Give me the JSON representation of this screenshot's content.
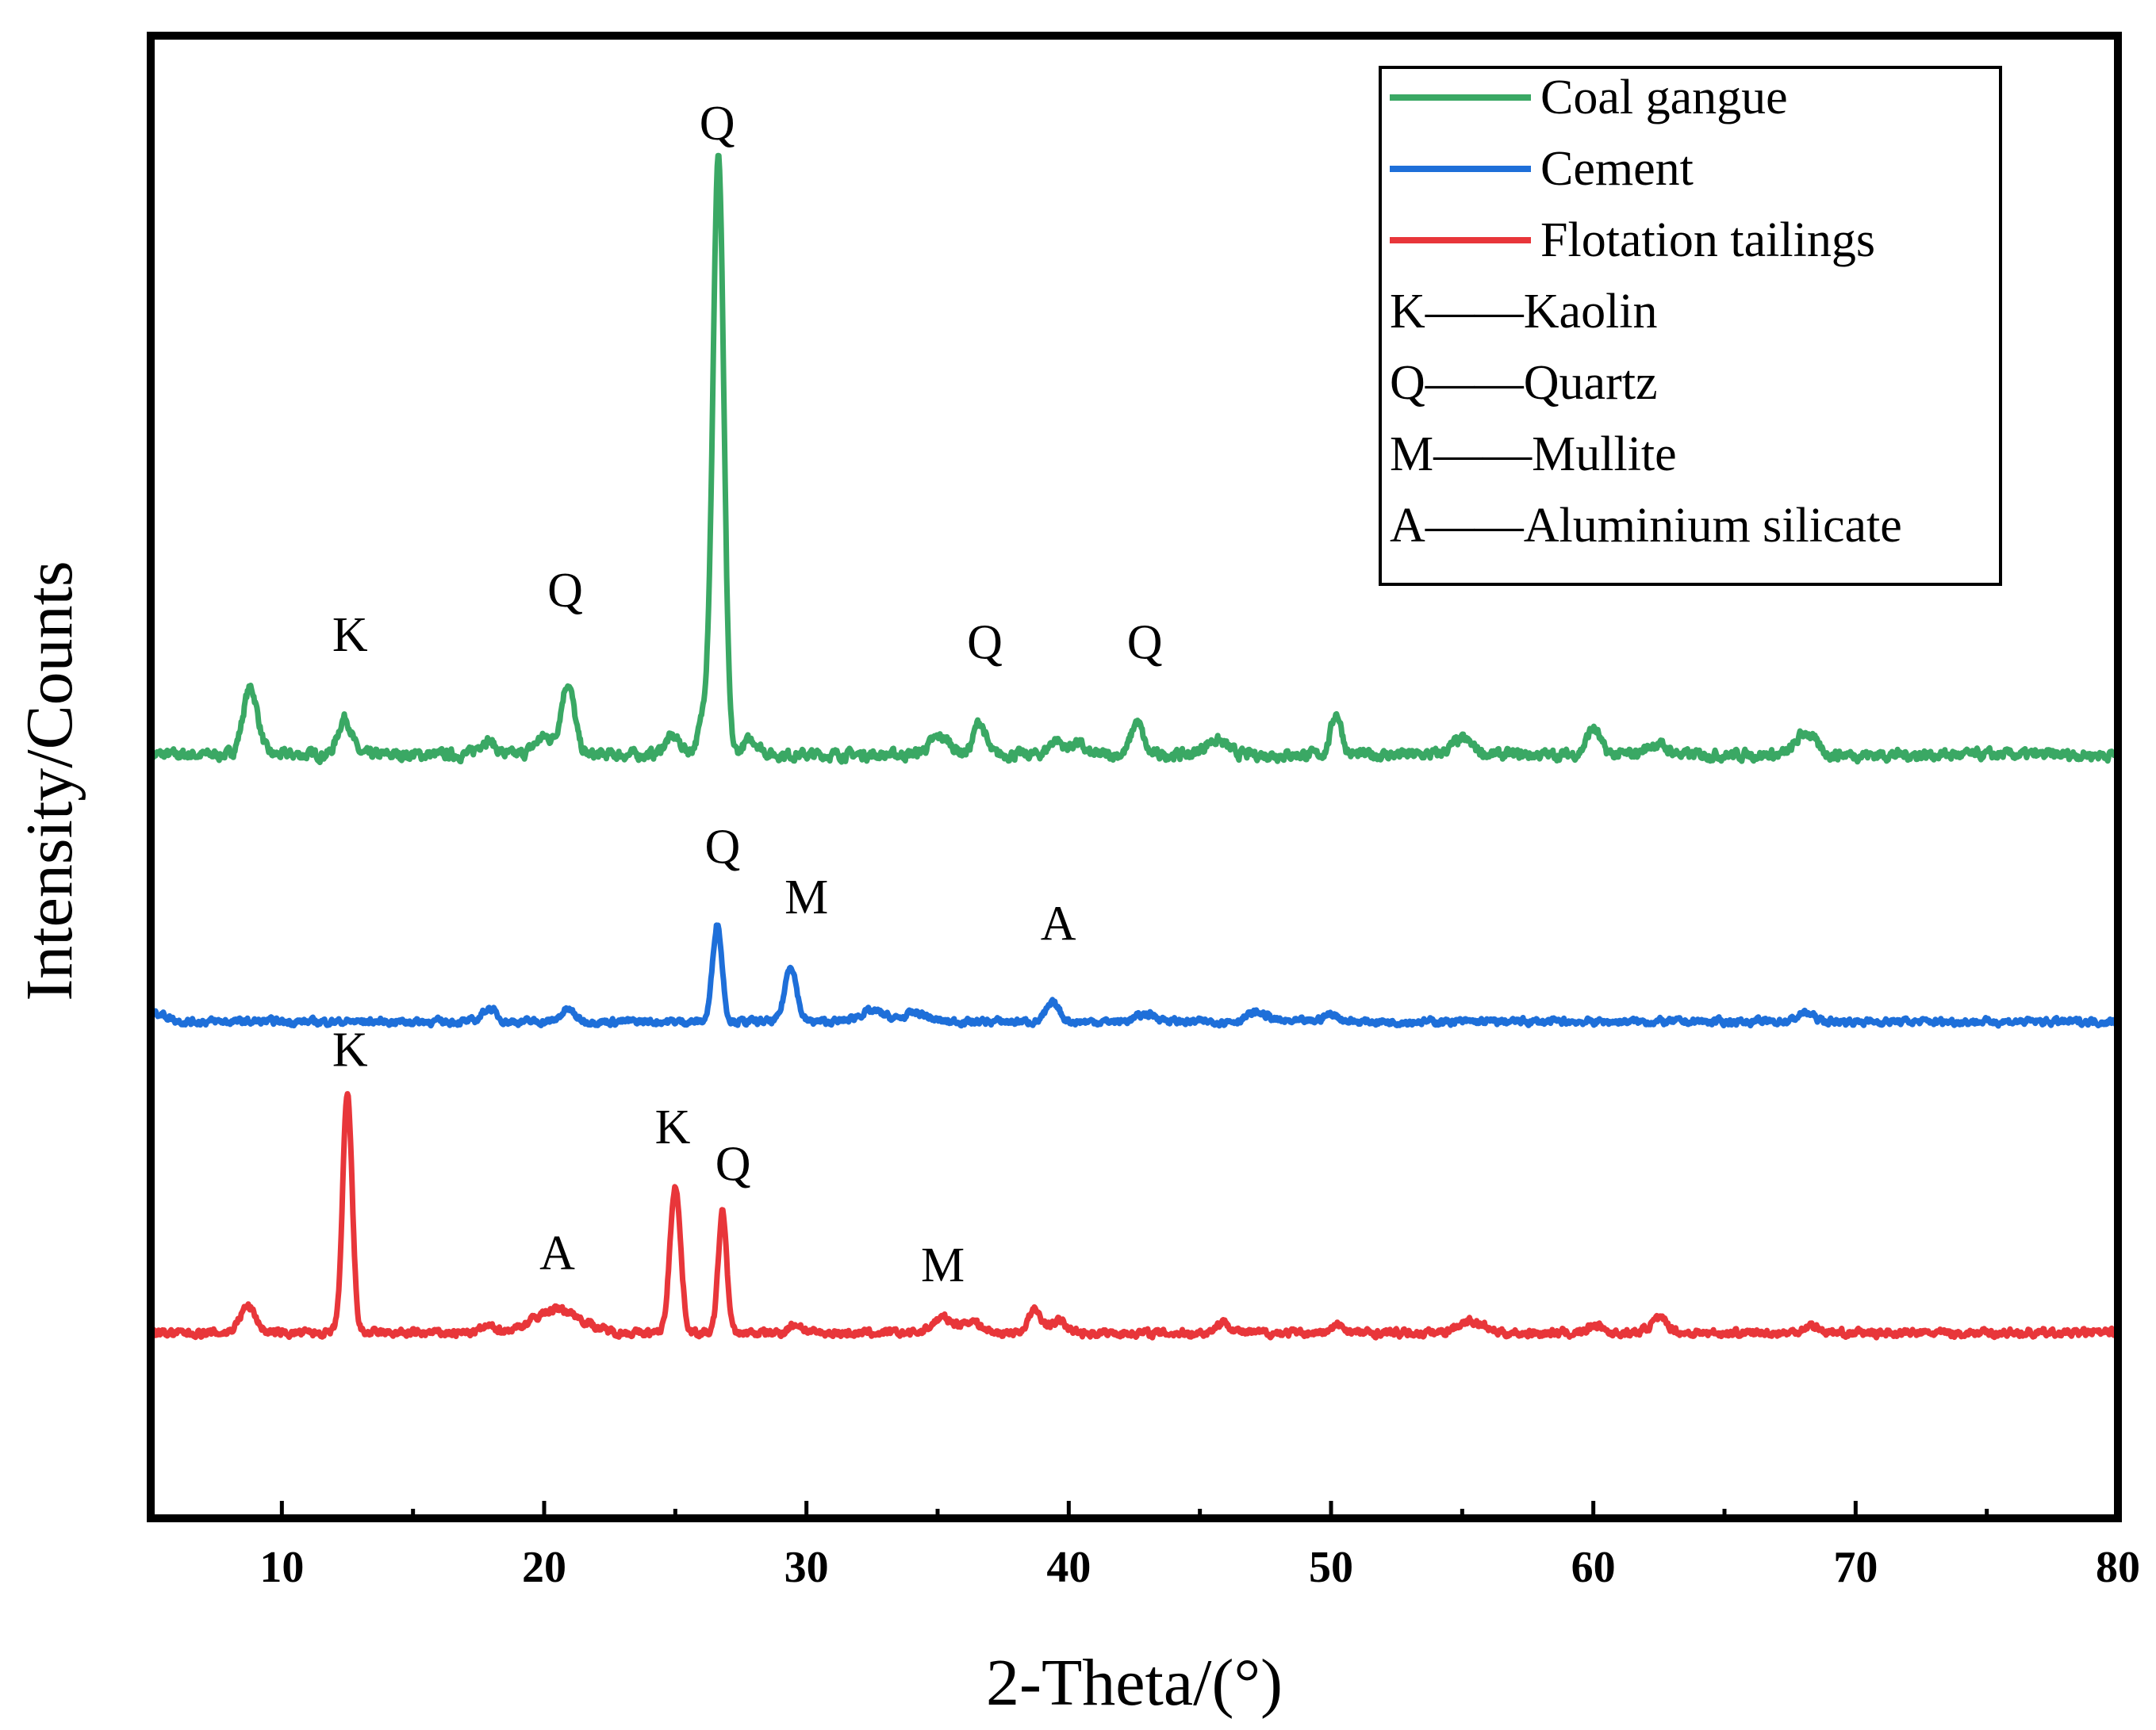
{
  "chart_data": {
    "type": "line",
    "title": "",
    "xlabel": "2-Theta/(°)",
    "ylabel": "Intensity/Counts",
    "xlim": [
      5,
      80
    ],
    "ylim": [
      0,
      100
    ],
    "xticks": [
      10,
      20,
      30,
      40,
      50,
      60,
      70,
      80
    ],
    "grid": false,
    "legend_position": "top-right",
    "series": [
      {
        "name": "Coal gangue",
        "color": "#3aa864",
        "baseline": 51.5,
        "noise": 0.55,
        "peaks": [
          {
            "x": 8.8,
            "h": 4.5,
            "w": 0.28
          },
          {
            "x": 12.4,
            "h": 2.5,
            "w": 0.25
          },
          {
            "x": 17.8,
            "h": 1.0,
            "w": 0.3
          },
          {
            "x": 20.0,
            "h": 1.2,
            "w": 0.35
          },
          {
            "x": 20.9,
            "h": 4.8,
            "w": 0.25
          },
          {
            "x": 24.9,
            "h": 1.2,
            "w": 0.3
          },
          {
            "x": 26.3,
            "h": 4.0,
            "w": 0.3
          },
          {
            "x": 26.65,
            "h": 38.5,
            "w": 0.2
          },
          {
            "x": 27.9,
            "h": 1.0,
            "w": 0.3
          },
          {
            "x": 35.1,
            "h": 1.2,
            "w": 0.4
          },
          {
            "x": 36.6,
            "h": 2.2,
            "w": 0.22
          },
          {
            "x": 39.5,
            "h": 1.0,
            "w": 0.25
          },
          {
            "x": 40.3,
            "h": 0.8,
            "w": 0.25
          },
          {
            "x": 42.6,
            "h": 2.2,
            "w": 0.22
          },
          {
            "x": 45.6,
            "h": 1.0,
            "w": 0.4
          },
          {
            "x": 50.2,
            "h": 2.8,
            "w": 0.2
          },
          {
            "x": 55.0,
            "h": 1.0,
            "w": 0.4
          },
          {
            "x": 60.0,
            "h": 1.8,
            "w": 0.25
          },
          {
            "x": 62.4,
            "h": 0.7,
            "w": 0.4
          },
          {
            "x": 68.1,
            "h": 1.5,
            "w": 0.35
          }
        ],
        "annotations": [
          {
            "x": 12.6,
            "y": 58.5,
            "label": "K"
          },
          {
            "x": 20.8,
            "y": 61.5,
            "label": "Q"
          },
          {
            "x": 26.6,
            "y": 93.0,
            "label": "Q"
          },
          {
            "x": 36.8,
            "y": 58.0,
            "label": "Q"
          },
          {
            "x": 42.9,
            "y": 58.0,
            "label": "Q"
          }
        ]
      },
      {
        "name": "Cement",
        "color": "#1e6fd9",
        "baseline": 33.5,
        "noise": 0.35,
        "peaks": [
          {
            "x": 5.2,
            "h": 0.6,
            "w": 0.4
          },
          {
            "x": 17.9,
            "h": 0.9,
            "w": 0.25
          },
          {
            "x": 20.9,
            "h": 0.8,
            "w": 0.25
          },
          {
            "x": 26.6,
            "h": 6.6,
            "w": 0.18
          },
          {
            "x": 29.4,
            "h": 3.8,
            "w": 0.22
          },
          {
            "x": 32.5,
            "h": 0.7,
            "w": 0.5
          },
          {
            "x": 34.2,
            "h": 0.6,
            "w": 0.4
          },
          {
            "x": 39.4,
            "h": 1.2,
            "w": 0.25
          },
          {
            "x": 43.0,
            "h": 0.5,
            "w": 0.4
          },
          {
            "x": 47.2,
            "h": 0.6,
            "w": 0.4
          },
          {
            "x": 50.0,
            "h": 0.5,
            "w": 0.3
          },
          {
            "x": 68.1,
            "h": 0.6,
            "w": 0.3
          }
        ],
        "annotations": [
          {
            "x": 26.8,
            "y": 44.2,
            "label": "Q"
          },
          {
            "x": 30.0,
            "y": 40.8,
            "label": "M"
          },
          {
            "x": 39.6,
            "y": 39.0,
            "label": "A"
          }
        ]
      },
      {
        "name": "Flotation tailings",
        "color": "#e8363a",
        "baseline": 12.5,
        "noise": 0.4,
        "peaks": [
          {
            "x": 8.7,
            "h": 1.8,
            "w": 0.3
          },
          {
            "x": 12.5,
            "h": 16.0,
            "w": 0.18
          },
          {
            "x": 17.9,
            "h": 0.4,
            "w": 0.3
          },
          {
            "x": 20.5,
            "h": 1.6,
            "w": 0.9
          },
          {
            "x": 25.0,
            "h": 10.0,
            "w": 0.2
          },
          {
            "x": 26.8,
            "h": 8.2,
            "w": 0.16
          },
          {
            "x": 29.6,
            "h": 0.6,
            "w": 0.25
          },
          {
            "x": 35.2,
            "h": 1.0,
            "w": 0.4
          },
          {
            "x": 36.3,
            "h": 0.8,
            "w": 0.35
          },
          {
            "x": 38.7,
            "h": 1.5,
            "w": 0.25
          },
          {
            "x": 39.6,
            "h": 0.8,
            "w": 0.3
          },
          {
            "x": 45.9,
            "h": 0.7,
            "w": 0.3
          },
          {
            "x": 50.3,
            "h": 0.5,
            "w": 0.25
          },
          {
            "x": 55.3,
            "h": 0.8,
            "w": 0.5
          },
          {
            "x": 60.1,
            "h": 0.6,
            "w": 0.25
          },
          {
            "x": 62.5,
            "h": 0.9,
            "w": 0.35
          },
          {
            "x": 68.3,
            "h": 0.5,
            "w": 0.3
          }
        ],
        "annotations": [
          {
            "x": 12.6,
            "y": 30.5,
            "label": "K"
          },
          {
            "x": 20.5,
            "y": 16.8,
            "label": "A"
          },
          {
            "x": 24.9,
            "y": 25.3,
            "label": "K"
          },
          {
            "x": 27.2,
            "y": 22.8,
            "label": "Q"
          },
          {
            "x": 35.2,
            "y": 16.0,
            "label": "M"
          }
        ]
      }
    ],
    "legend_entries": [
      {
        "text": "Coal gangue",
        "type": "line",
        "series": 0
      },
      {
        "text": "Cement",
        "type": "line",
        "series": 1
      },
      {
        "text": "Flotation tailings",
        "type": "line",
        "series": 2
      },
      {
        "text": "K——Kaolin",
        "type": "text"
      },
      {
        "text": "Q——Quartz",
        "type": "text"
      },
      {
        "text": "M——Mullite",
        "type": "text"
      },
      {
        "text": "A——Aluminium silicate",
        "type": "text"
      }
    ]
  }
}
